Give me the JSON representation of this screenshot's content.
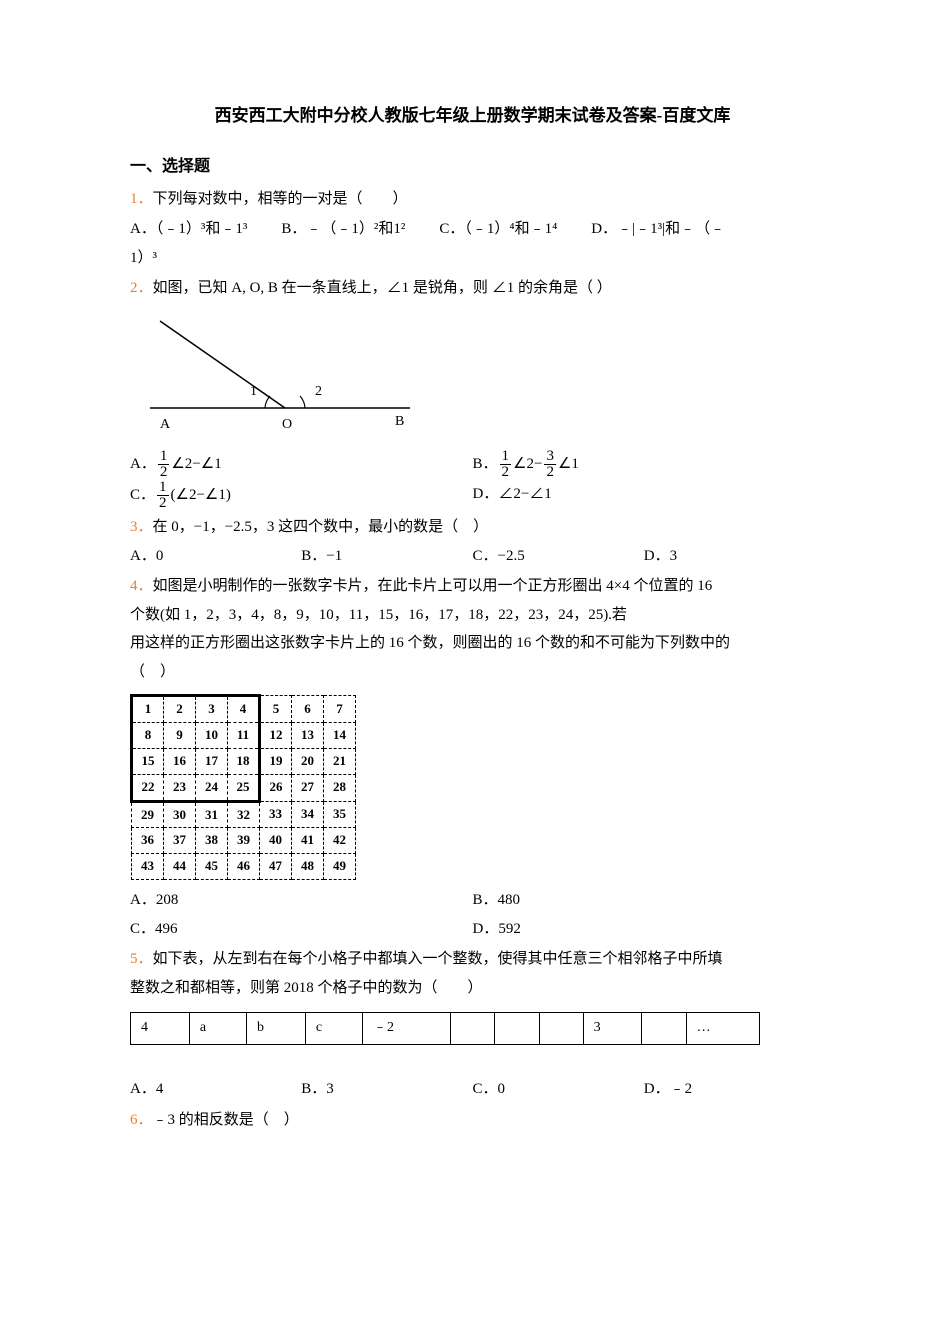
{
  "title": "西安西工大附中分校人教版七年级上册数学期末试卷及答案-百度文库",
  "section1": "一、选择题",
  "q1": {
    "num": "1．",
    "text": "下列每对数中，相等的一对是（　　）",
    "A": "A．（﹣1）³和﹣1³",
    "B": "B．﹣（﹣1）²和1²",
    "C": "C．（﹣1）⁴和﹣1⁴",
    "D_pre": "D．﹣|﹣1³|和﹣（﹣",
    "D_tail": "1）³"
  },
  "q2": {
    "num": "2．",
    "text": "如图，已知 A, O, B 在一条直线上，∠1 是锐角，则 ∠1 的余角是（  ）",
    "svg": {
      "A": "A",
      "O": "O",
      "B": "B",
      "ang1": "1",
      "ang2": "2"
    },
    "A_pre": "A．",
    "A_expr_tail": "∠2−∠1",
    "B_pre": "B．",
    "B_expr_tail_a": "∠2−",
    "B_expr_tail_b": "∠1",
    "C_pre": "C．",
    "C_expr_tail": "(∠2−∠1)",
    "D_pre": "D．",
    "D_expr": "∠2−∠1"
  },
  "q3": {
    "num": "3．",
    "text": "在 0，−1，−2.5，3 这四个数中，最小的数是（　）",
    "A": "A．0",
    "B": "B．−1",
    "C": "C．−2.5",
    "D": "D．3"
  },
  "q4": {
    "num": "4．",
    "l1": "如图是小明制作的一张数字卡片，在此卡片上可以用一个正方形圈出 4×4 个位置的 16",
    "l2": "个数(如 1，2，3，4，8，9，10，11，15，16，17，18，22，23，24，25).若",
    "l3": "用这样的正方形圈出这张数字卡片上的 16 个数，则圈出的 16 个数的和不可能为下列数中的",
    "l4": "（　）",
    "grid": [
      [
        1,
        2,
        3,
        4,
        5,
        6,
        7
      ],
      [
        8,
        9,
        10,
        11,
        12,
        13,
        14
      ],
      [
        15,
        16,
        17,
        18,
        19,
        20,
        21
      ],
      [
        22,
        23,
        24,
        25,
        26,
        27,
        28
      ],
      [
        29,
        30,
        31,
        32,
        33,
        34,
        35
      ],
      [
        36,
        37,
        38,
        39,
        40,
        41,
        42
      ],
      [
        43,
        44,
        45,
        46,
        47,
        48,
        49
      ]
    ],
    "A": "A．208",
    "B": "B．480",
    "C": "C．496",
    "D": "D．592"
  },
  "q5": {
    "num": "5．",
    "l1": "如下表，从左到右在每个小格子中都填入一个整数，使得其中任意三个相邻格子中所填",
    "l2": "整数之和都相等，则第 2018 个格子中的数为（　　）",
    "cells": [
      "4",
      "a",
      "b",
      "c",
      "﹣2",
      "",
      "",
      "",
      "3",
      "",
      "…"
    ],
    "A": "A．4",
    "B": "B．3",
    "C": "C．0",
    "D": "D．﹣2"
  },
  "q6": {
    "num": "6．",
    "text": "﹣3 的相反数是（　）"
  }
}
